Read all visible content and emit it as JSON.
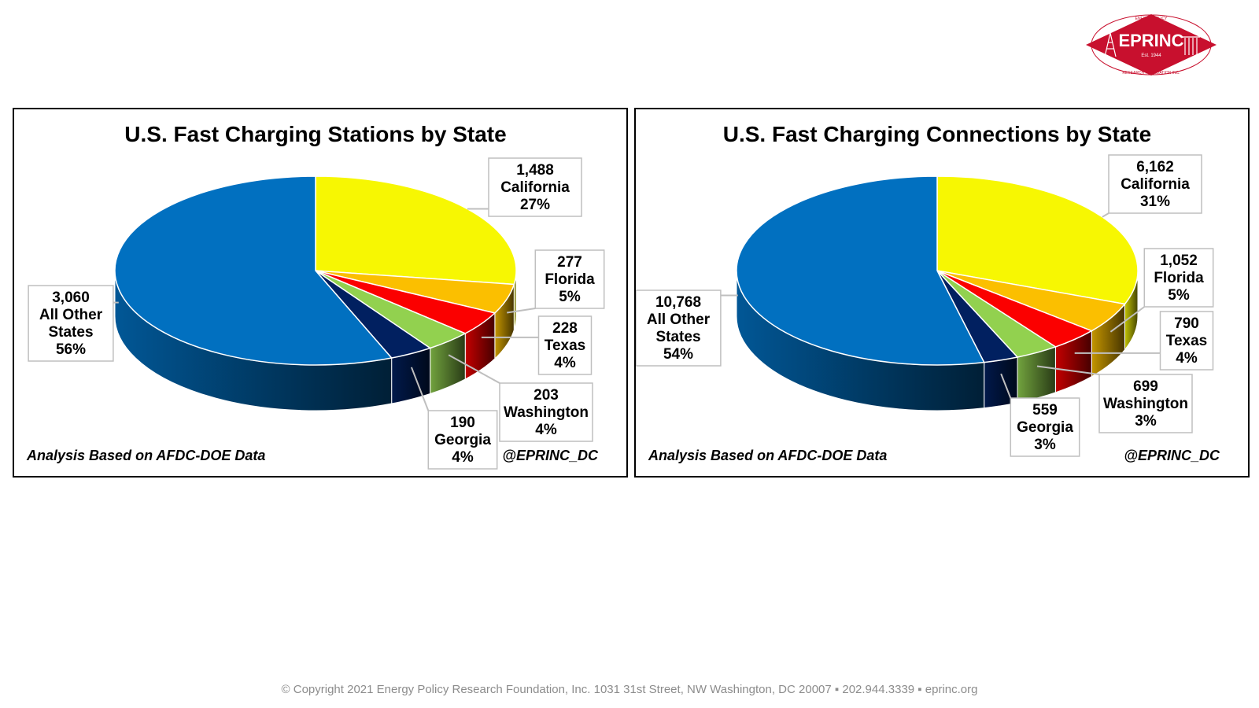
{
  "logo": {
    "name": "EPRINC",
    "established": "Est. 1944",
    "ring_top": "ENERGY POLICY",
    "ring_bottom": "RESEARCH FOUNDATION INC."
  },
  "colors": {
    "California": "#f7f702",
    "Florida": "#fbbf00",
    "Texas": "#fb0000",
    "Washington": "#92d14f",
    "Georgia": "#012060",
    "All Other States": "#0170c0"
  },
  "chart_data": [
    {
      "type": "pie",
      "title": "U.S. Fast Charging Stations by State",
      "note": "Analysis Based on AFDC-DOE Data",
      "handle": "@EPRINC_DC",
      "slices": [
        {
          "label": "California",
          "value": 1488,
          "value_text": "1,488",
          "percent": "27%"
        },
        {
          "label": "Florida",
          "value": 277,
          "value_text": "277",
          "percent": "5%"
        },
        {
          "label": "Texas",
          "value": 228,
          "value_text": "228",
          "percent": "4%"
        },
        {
          "label": "Washington",
          "value": 203,
          "value_text": "203",
          "percent": "4%"
        },
        {
          "label": "Georgia",
          "value": 190,
          "value_text": "190",
          "percent": "4%"
        },
        {
          "label": "All Other States",
          "value": 3060,
          "value_text": "3,060",
          "percent": "56%"
        }
      ]
    },
    {
      "type": "pie",
      "title": "U.S. Fast Charging Connections by State",
      "note": "Analysis Based on AFDC-DOE Data",
      "handle": "@EPRINC_DC",
      "slices": [
        {
          "label": "California",
          "value": 6162,
          "value_text": "6,162",
          "percent": "31%"
        },
        {
          "label": "Florida",
          "value": 1052,
          "value_text": "1,052",
          "percent": "5%"
        },
        {
          "label": "Texas",
          "value": 790,
          "value_text": "790",
          "percent": "4%"
        },
        {
          "label": "Washington",
          "value": 699,
          "value_text": "699",
          "percent": "3%"
        },
        {
          "label": "Georgia",
          "value": 559,
          "value_text": "559",
          "percent": "3%"
        },
        {
          "label": "All Other States",
          "value": 10768,
          "value_text": "10,768",
          "percent": "54%"
        }
      ]
    }
  ],
  "footer": {
    "text": "© Copyright 2021 Energy Policy Research Foundation, Inc. 1031 31st Street, NW Washington, DC 20007 ▪ 202.944.3339 ▪ eprinc.org"
  }
}
